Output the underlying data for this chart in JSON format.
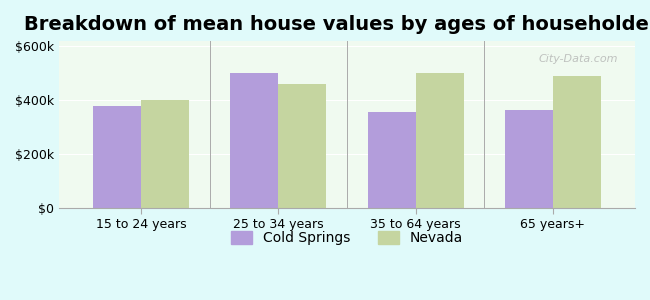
{
  "title": "Breakdown of mean house values by ages of householders",
  "categories": [
    "15 to 24 years",
    "25 to 34 years",
    "35 to 64 years",
    "65 years+"
  ],
  "cold_springs": [
    380000,
    500000,
    355000,
    365000
  ],
  "nevada": [
    400000,
    460000,
    500000,
    490000
  ],
  "cold_springs_color": "#b39ddb",
  "nevada_color": "#c5d5a0",
  "background_color": "#e0fafa",
  "plot_bg_color": "#f0faf0",
  "ylim": [
    0,
    620000
  ],
  "yticks": [
    0,
    200000,
    400000,
    600000
  ],
  "ytick_labels": [
    "$0",
    "$200k",
    "$400k",
    "$600k"
  ],
  "legend_labels": [
    "Cold Springs",
    "Nevada"
  ],
  "bar_width": 0.35,
  "title_fontsize": 14,
  "tick_fontsize": 9,
  "legend_fontsize": 10,
  "watermark": "City-Data.com"
}
